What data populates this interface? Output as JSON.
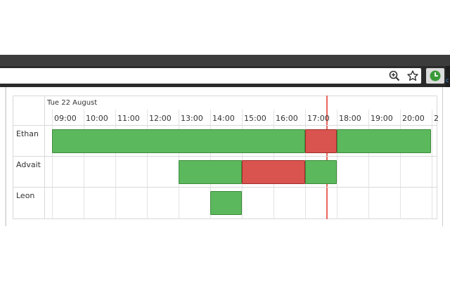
{
  "browser": {
    "extension_letter": "c"
  },
  "icons": {
    "zoom": "zoom-in-icon",
    "star": "bookmark-star-icon",
    "extension": "clock-icon"
  },
  "timeline": {
    "date": "Tue 22 August",
    "hours": [
      "09:00",
      "10:00",
      "11:00",
      "12:00",
      "13:00",
      "14:00",
      "15:00",
      "16:00",
      "17:00",
      "18:00",
      "19:00",
      "20:00",
      "2"
    ],
    "now": "17:40",
    "rows": [
      {
        "name": "Ethan",
        "bookings": [
          {
            "start": "09:00",
            "end": "17:00",
            "status": "available"
          },
          {
            "start": "17:00",
            "end": "18:00",
            "status": "busy"
          },
          {
            "start": "18:00",
            "end": "21:00",
            "status": "available"
          }
        ]
      },
      {
        "name": "Advait",
        "bookings": [
          {
            "start": "13:00",
            "end": "15:00",
            "status": "available"
          },
          {
            "start": "15:00",
            "end": "17:00",
            "status": "busy"
          },
          {
            "start": "17:00",
            "end": "18:00",
            "status": "available"
          }
        ]
      },
      {
        "name": "Leon",
        "bookings": [
          {
            "start": "14:00",
            "end": "15:00",
            "status": "available"
          }
        ]
      }
    ]
  },
  "colors": {
    "available": "#5cb85c",
    "busy": "#d9534f",
    "now_line": "#e8665e",
    "chrome_dark": "#2b2b2b"
  }
}
